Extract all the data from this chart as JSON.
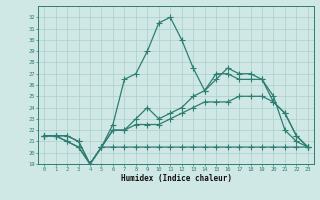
{
  "xlabel": "Humidex (Indice chaleur)",
  "x": [
    0,
    1,
    2,
    3,
    4,
    5,
    6,
    7,
    8,
    9,
    10,
    11,
    12,
    13,
    14,
    15,
    16,
    17,
    18,
    19,
    20,
    21,
    22,
    23
  ],
  "line_min": [
    21.5,
    21.5,
    21.0,
    20.5,
    19.0,
    20.5,
    20.5,
    20.5,
    20.5,
    20.5,
    20.5,
    20.5,
    20.5,
    20.5,
    20.5,
    20.5,
    20.5,
    20.5,
    20.5,
    20.5,
    20.5,
    20.5,
    20.5,
    20.5
  ],
  "line_low": [
    21.5,
    21.5,
    21.5,
    21.0,
    19.0,
    20.5,
    22.0,
    22.0,
    22.5,
    22.5,
    22.5,
    23.0,
    23.5,
    24.0,
    24.5,
    24.5,
    24.5,
    25.0,
    25.0,
    25.0,
    24.5,
    23.5,
    21.5,
    20.5
  ],
  "line_mid": [
    21.5,
    21.5,
    21.5,
    21.0,
    19.0,
    20.5,
    22.0,
    22.0,
    23.0,
    24.0,
    23.0,
    23.5,
    24.0,
    25.0,
    25.5,
    26.5,
    27.5,
    27.0,
    27.0,
    26.5,
    25.0,
    22.0,
    21.0,
    20.5
  ],
  "line_high": [
    21.5,
    21.5,
    21.0,
    20.5,
    19.0,
    20.5,
    22.5,
    26.5,
    27.0,
    29.0,
    31.5,
    32.0,
    30.0,
    27.5,
    25.5,
    27.0,
    27.0,
    26.5,
    26.5,
    26.5,
    24.5,
    23.5,
    21.5,
    20.5
  ],
  "line_color": "#2e7d72",
  "bg_color": "#cfe8e5",
  "grid_color": "#aacfcc",
  "ylim": [
    19,
    33
  ],
  "yticks": [
    19,
    20,
    21,
    22,
    23,
    24,
    25,
    26,
    27,
    28,
    29,
    30,
    31,
    32
  ],
  "xticks": [
    0,
    1,
    2,
    3,
    4,
    5,
    6,
    7,
    8,
    9,
    10,
    11,
    12,
    13,
    14,
    15,
    16,
    17,
    18,
    19,
    20,
    21,
    22,
    23
  ]
}
